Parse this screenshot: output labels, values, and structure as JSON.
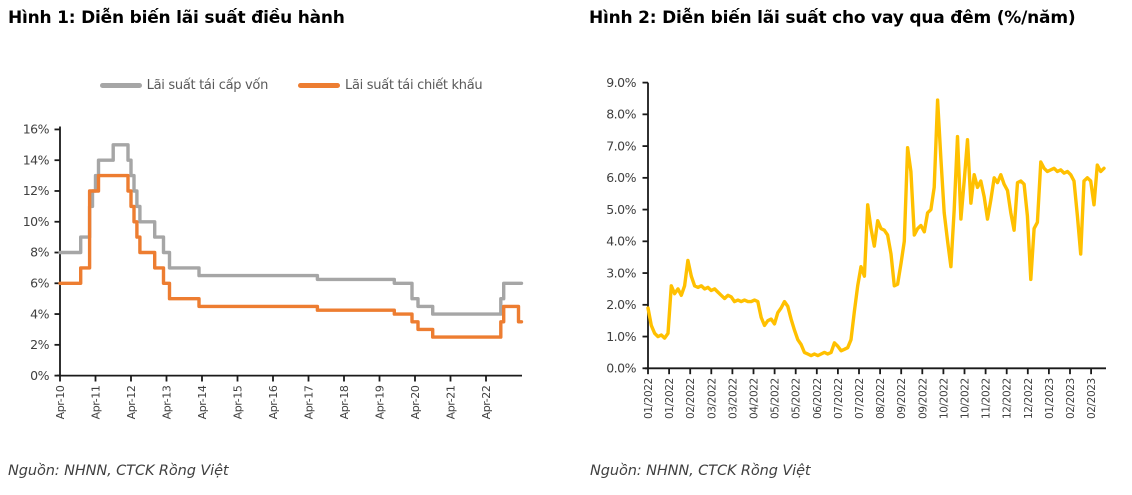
{
  "background": "#ffffff",
  "axis_color": "#1a1a1a",
  "tick_label_color": "#404040",
  "chart_data": [
    {
      "id": "fig1",
      "type": "line",
      "line_style": "step",
      "title": "Hình 1: Diễn biến lãi suất điều hành",
      "source_note": "Nguồn: NHNN, CTCK Rồng Việt",
      "xlabel": "",
      "ylabel": "",
      "ylim": [
        0,
        16
      ],
      "y_tick_labels": [
        "0%",
        "2%",
        "4%",
        "6%",
        "8%",
        "10%",
        "12%",
        "14%",
        "16%"
      ],
      "x_tick_labels": [
        "Apr-10",
        "Apr-11",
        "Apr-12",
        "Apr-13",
        "Apr-14",
        "Apr-15",
        "Apr-16",
        "Apr-17",
        "Apr-18",
        "Apr-19",
        "Apr-20",
        "Apr-21",
        "Apr-22"
      ],
      "x_unit": "months since Apr-2010",
      "x_end_month": 156,
      "legend_position": "top-center",
      "grid": false,
      "series": [
        {
          "name": "Lãi suất tái cấp vốn",
          "color": "#a6a6a6",
          "steps_month_value": [
            [
              0,
              8
            ],
            [
              7,
              9
            ],
            [
              10,
              11
            ],
            [
              11,
              12
            ],
            [
              12,
              13
            ],
            [
              13,
              14
            ],
            [
              18,
              15
            ],
            [
              23,
              14
            ],
            [
              24,
              13
            ],
            [
              25,
              12
            ],
            [
              26,
              11
            ],
            [
              27,
              10
            ],
            [
              32,
              9
            ],
            [
              35,
              8
            ],
            [
              37,
              7
            ],
            [
              47,
              6.5
            ],
            [
              87,
              6.25
            ],
            [
              113,
              6
            ],
            [
              119,
              5
            ],
            [
              121,
              4.5
            ],
            [
              126,
              4
            ],
            [
              149,
              5
            ],
            [
              150,
              6
            ]
          ]
        },
        {
          "name": "Lãi suất tái chiết khấu",
          "color": "#ed7d31",
          "steps_month_value": [
            [
              0,
              6
            ],
            [
              7,
              7
            ],
            [
              10,
              12
            ],
            [
              13,
              13
            ],
            [
              23,
              12
            ],
            [
              24,
              11
            ],
            [
              25,
              10
            ],
            [
              26,
              9
            ],
            [
              27,
              8
            ],
            [
              32,
              7
            ],
            [
              35,
              6
            ],
            [
              37,
              5
            ],
            [
              47,
              4.5
            ],
            [
              87,
              4.25
            ],
            [
              113,
              4
            ],
            [
              119,
              3.5
            ],
            [
              121,
              3
            ],
            [
              126,
              2.5
            ],
            [
              149,
              3.5
            ],
            [
              150,
              4.5
            ],
            [
              155,
              3.5
            ]
          ]
        }
      ]
    },
    {
      "id": "fig2",
      "type": "line",
      "title": "Hình 2: Diễn biến lãi suất cho vay qua đêm (%/năm)",
      "source_note": "Nguồn: NHNN, CTCK Rồng Việt",
      "xlabel": "",
      "ylabel": "",
      "ylim": [
        0,
        9
      ],
      "y_tick_labels": [
        "0.0%",
        "1.0%",
        "2.0%",
        "3.0%",
        "4.0%",
        "5.0%",
        "6.0%",
        "7.0%",
        "8.0%",
        "9.0%"
      ],
      "x_tick_labels": [
        "01/2022",
        "01/2022",
        "02/2022",
        "03/2022",
        "03/2022",
        "04/2022",
        "05/2022",
        "05/2022",
        "06/2022",
        "07/2022",
        "07/2022",
        "08/2022",
        "09/2022",
        "09/2022",
        "10/2022",
        "10/2022",
        "11/2022",
        "12/2022",
        "12/2022",
        "01/2023",
        "02/2023",
        "02/2023"
      ],
      "grid": false,
      "legend_position": "none",
      "series": [
        {
          "name": "Lãi suất cho vay qua đêm",
          "color": "#ffc000",
          "values": [
            1.9,
            1.35,
            1.1,
            1.0,
            1.05,
            0.95,
            1.1,
            2.6,
            2.35,
            2.5,
            2.3,
            2.6,
            3.4,
            2.9,
            2.6,
            2.55,
            2.6,
            2.5,
            2.55,
            2.45,
            2.5,
            2.4,
            2.3,
            2.2,
            2.3,
            2.25,
            2.1,
            2.15,
            2.1,
            2.15,
            2.1,
            2.1,
            2.15,
            2.1,
            1.6,
            1.35,
            1.5,
            1.55,
            1.4,
            1.75,
            1.9,
            2.1,
            1.95,
            1.55,
            1.2,
            0.9,
            0.75,
            0.5,
            0.45,
            0.4,
            0.45,
            0.4,
            0.45,
            0.5,
            0.45,
            0.5,
            0.8,
            0.7,
            0.55,
            0.6,
            0.65,
            0.9,
            1.8,
            2.6,
            3.2,
            2.9,
            5.15,
            4.4,
            3.85,
            4.65,
            4.4,
            4.35,
            4.2,
            3.6,
            2.6,
            2.65,
            3.3,
            4.0,
            6.95,
            6.2,
            4.2,
            4.4,
            4.5,
            4.3,
            4.9,
            5.0,
            5.7,
            8.45,
            6.6,
            4.9,
            4.0,
            3.2,
            5.0,
            7.3,
            4.7,
            5.9,
            7.2,
            5.2,
            6.1,
            5.7,
            5.9,
            5.4,
            4.7,
            5.3,
            6.0,
            5.85,
            6.1,
            5.8,
            5.6,
            4.9,
            4.35,
            5.85,
            5.9,
            5.8,
            4.8,
            2.8,
            4.4,
            4.6,
            6.5,
            6.3,
            6.2,
            6.25,
            6.3,
            6.2,
            6.25,
            6.15,
            6.2,
            6.1,
            5.9,
            4.8,
            3.6,
            5.9,
            6.0,
            5.9,
            5.15,
            6.4,
            6.2,
            6.3
          ]
        }
      ]
    }
  ]
}
